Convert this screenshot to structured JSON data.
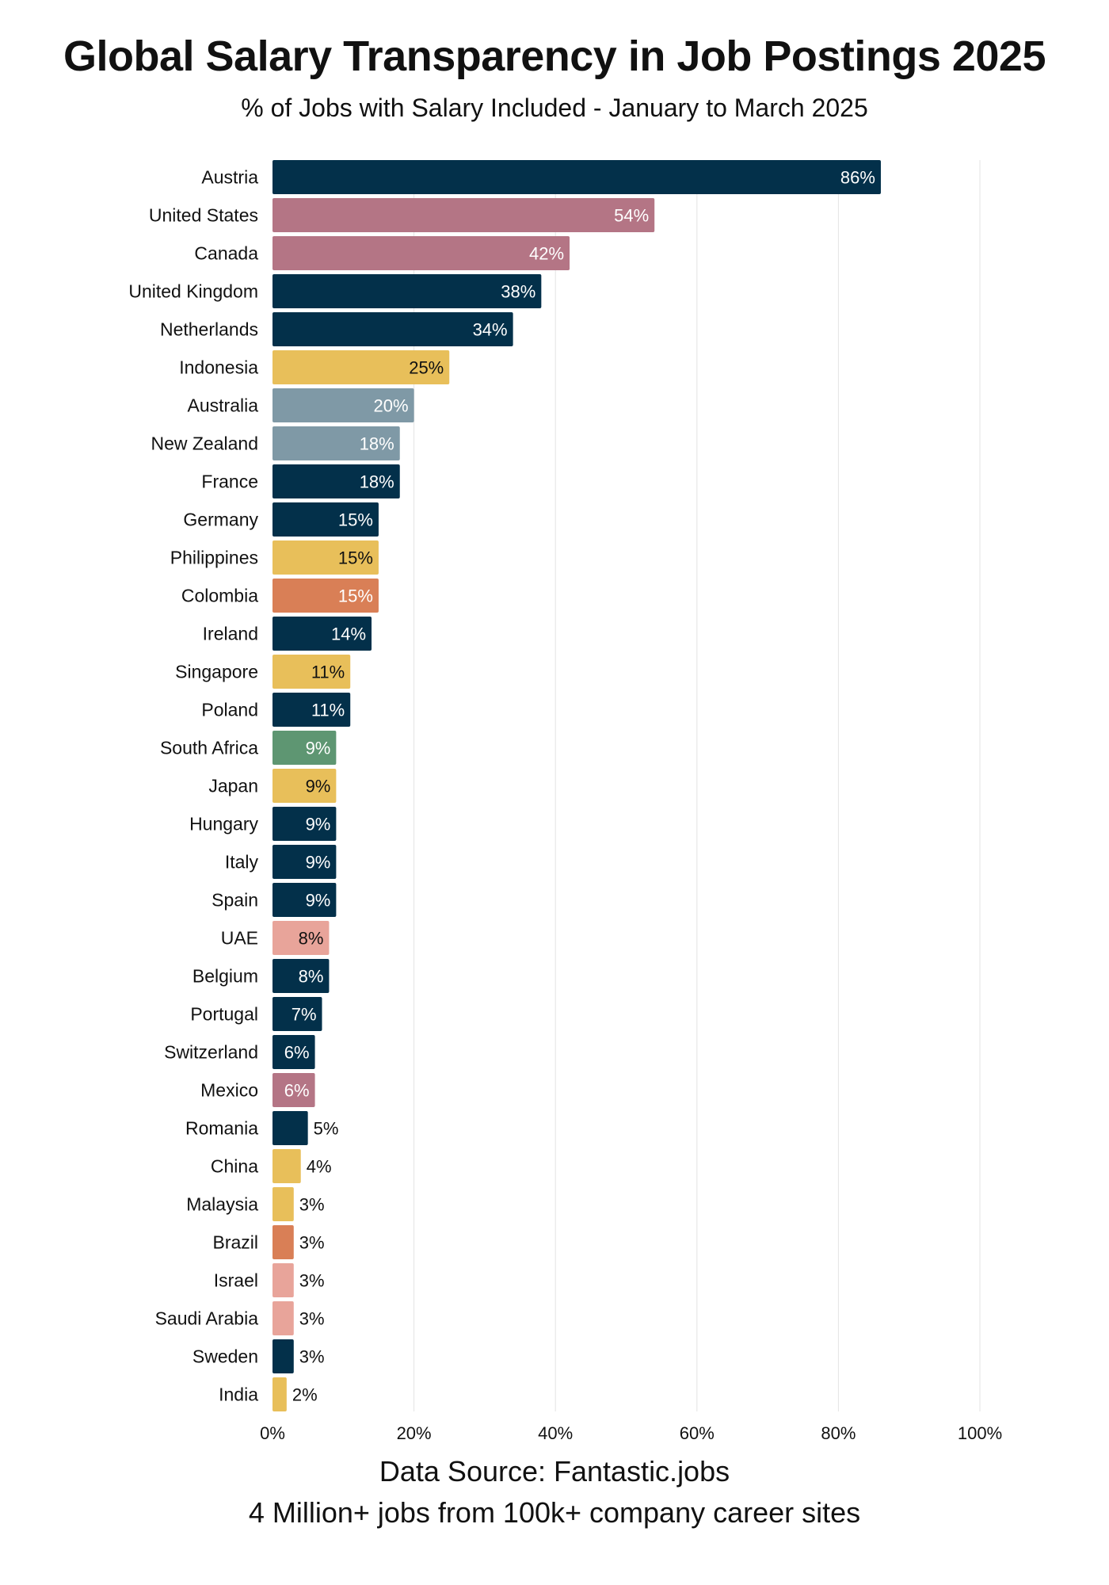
{
  "title": "Global Salary Transparency in Job Postings 2025",
  "subtitle": "% of Jobs with Salary Included - January to March 2025",
  "footer": {
    "line1": "Data Source: Fantastic.jobs",
    "line2": "4 Million+ jobs from 100k+ company career sites"
  },
  "colors": {
    "navy": "#03304a",
    "rose": "#b47585",
    "yellow": "#e8bf5a",
    "slate": "#7f99a6",
    "orange": "#d97f56",
    "green": "#5e9672",
    "light_pink": "#e8a49a"
  },
  "chart_data": {
    "type": "bar",
    "orientation": "horizontal",
    "title": "Global Salary Transparency in Job Postings 2025",
    "subtitle": "% of Jobs with Salary Included - January to March 2025",
    "xlim": [
      0,
      100
    ],
    "xticks": [
      "0%",
      "20%",
      "40%",
      "60%",
      "80%",
      "100%"
    ],
    "grid": "vertical",
    "unit": "%",
    "categories": [
      "Austria",
      "United States",
      "Canada",
      "United Kingdom",
      "Netherlands",
      "Indonesia",
      "Australia",
      "New Zealand",
      "France",
      "Germany",
      "Philippines",
      "Colombia",
      "Ireland",
      "Singapore",
      "Poland",
      "South Africa",
      "Japan",
      "Hungary",
      "Italy",
      "Spain",
      "UAE",
      "Belgium",
      "Portugal",
      "Switzerland",
      "Mexico",
      "Romania",
      "China",
      "Malaysia",
      "Brazil",
      "Israel",
      "Saudi Arabia",
      "Sweden",
      "India"
    ],
    "values": [
      86,
      54,
      42,
      38,
      34,
      25,
      20,
      18,
      18,
      15,
      15,
      15,
      14,
      11,
      11,
      9,
      9,
      9,
      9,
      9,
      8,
      8,
      7,
      6,
      6,
      5,
      4,
      3,
      3,
      3,
      3,
      3,
      2
    ],
    "bar_colors": [
      "navy",
      "rose",
      "rose",
      "navy",
      "navy",
      "yellow",
      "slate",
      "slate",
      "navy",
      "navy",
      "yellow",
      "orange",
      "navy",
      "yellow",
      "navy",
      "green",
      "yellow",
      "navy",
      "navy",
      "navy",
      "light_pink",
      "navy",
      "navy",
      "navy",
      "rose",
      "navy",
      "yellow",
      "yellow",
      "orange",
      "light_pink",
      "light_pink",
      "navy",
      "yellow"
    ]
  }
}
